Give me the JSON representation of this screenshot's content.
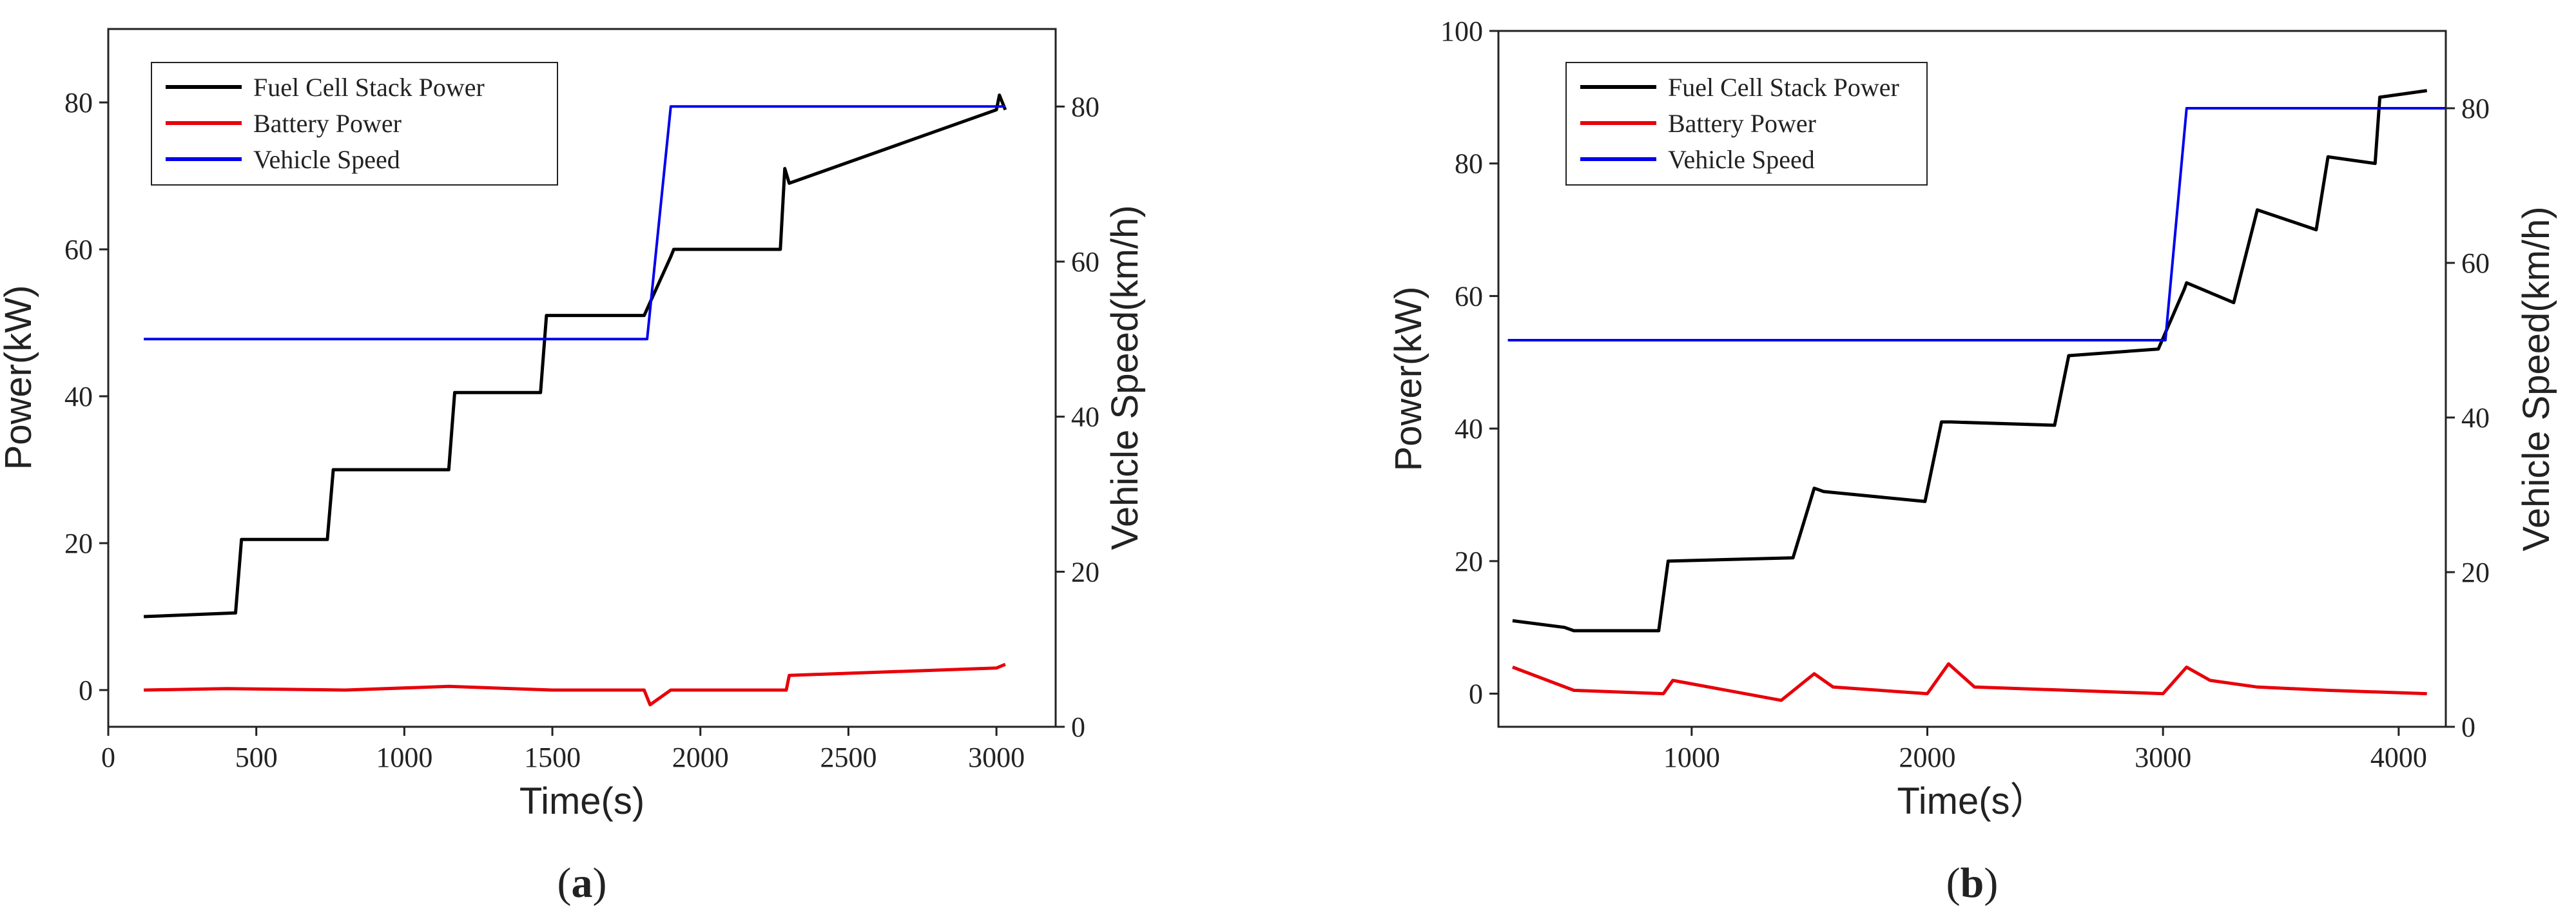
{
  "chart_data": [
    {
      "type": "line",
      "caption": {
        "open": "(",
        "letter": "a",
        "close": ")"
      },
      "xlabel": "Time(s)",
      "ylabel_left": "Power(kW)",
      "ylabel_right": "Vehicle Speed(km/h)",
      "xlim": [
        0,
        3200
      ],
      "ylim_left": [
        -5,
        90
      ],
      "ylim_right": [
        0,
        90
      ],
      "xticks": [
        0,
        500,
        1000,
        1500,
        2000,
        2500,
        3000
      ],
      "yticks_left": [
        0,
        20,
        40,
        60,
        80
      ],
      "yticks_right": [
        0,
        20,
        40,
        60,
        80
      ],
      "colors": {
        "stack": "#000000",
        "battery": "#e8000a",
        "speed": "#0000ee"
      },
      "legend": [
        {
          "label": "Fuel Cell Stack Power",
          "key": "stack"
        },
        {
          "label": "Battery Power",
          "key": "battery"
        },
        {
          "label": "Vehicle Speed",
          "key": "speed"
        }
      ],
      "series": [
        {
          "name": "Fuel Cell Stack Power",
          "key": "stack",
          "axis": "left",
          "x": [
            120,
            430,
            450,
            740,
            760,
            1150,
            1170,
            1460,
            1480,
            1810,
            1900,
            1910,
            2270,
            2285,
            2300,
            3000,
            3010,
            3030
          ],
          "y": [
            10,
            10.5,
            20.5,
            20.5,
            30,
            30,
            40.5,
            40.5,
            51,
            51,
            59,
            60,
            60,
            71,
            69,
            79,
            81,
            79
          ]
        },
        {
          "name": "Battery Power",
          "key": "battery",
          "axis": "left",
          "x": [
            120,
            400,
            800,
            1150,
            1500,
            1810,
            1830,
            1900,
            2100,
            2290,
            2300,
            3000,
            3030
          ],
          "y": [
            0,
            0.2,
            0,
            0.5,
            0,
            0,
            -2,
            0,
            0,
            0,
            2,
            3,
            3.5
          ]
        },
        {
          "name": "Vehicle Speed",
          "key": "speed",
          "axis": "right",
          "x": [
            120,
            1800,
            1820,
            1900,
            3030
          ],
          "y": [
            50,
            50,
            50,
            80,
            80
          ]
        }
      ]
    },
    {
      "type": "line",
      "caption": {
        "open": "(",
        "letter": "b",
        "close": ")"
      },
      "xlabel": "Time(s）",
      "ylabel_left": "Power(kW)",
      "ylabel_right": "Vehicle Speed(km/h)",
      "xlim": [
        180,
        4200
      ],
      "ylim_left": [
        -5,
        100
      ],
      "ylim_right": [
        0,
        90
      ],
      "xticks": [
        1000,
        2000,
        3000,
        4000
      ],
      "yticks_left": [
        0,
        20,
        40,
        60,
        80,
        100
      ],
      "yticks_right": [
        0,
        20,
        40,
        60,
        80
      ],
      "colors": {
        "stack": "#000000",
        "battery": "#e8000a",
        "speed": "#0000ee"
      },
      "legend": [
        {
          "label": "Fuel Cell Stack Power",
          "key": "stack"
        },
        {
          "label": "Battery Power",
          "key": "battery"
        },
        {
          "label": "Vehicle Speed",
          "key": "speed"
        }
      ],
      "series": [
        {
          "name": "Fuel Cell Stack Power",
          "key": "stack",
          "axis": "left",
          "x": [
            240,
            460,
            500,
            860,
            900,
            1430,
            1520,
            1560,
            1990,
            2060,
            2100,
            2540,
            2600,
            2980,
            3090,
            3100,
            3300,
            3400,
            3650,
            3700,
            3900,
            3920,
            4120
          ],
          "y": [
            11,
            10,
            9.5,
            9.5,
            20,
            20.5,
            31,
            30.5,
            29,
            41,
            41,
            40.5,
            51,
            52,
            61,
            62,
            59,
            73,
            70,
            81,
            80,
            90,
            91
          ]
        },
        {
          "name": "Battery Power",
          "key": "battery",
          "axis": "left",
          "x": [
            240,
            500,
            880,
            920,
            1380,
            1520,
            1600,
            2000,
            2090,
            2200,
            2600,
            3000,
            3100,
            3200,
            3400,
            3700,
            4120
          ],
          "y": [
            4,
            0.5,
            0,
            2,
            -1,
            3,
            1,
            0,
            4.5,
            1,
            0.5,
            0,
            4,
            2,
            1,
            0.5,
            0
          ]
        },
        {
          "name": "Vehicle Speed",
          "key": "speed",
          "axis": "right",
          "x": [
            220,
            2980,
            3010,
            3100,
            4200
          ],
          "y": [
            50,
            50,
            50,
            80,
            80
          ]
        }
      ]
    }
  ]
}
